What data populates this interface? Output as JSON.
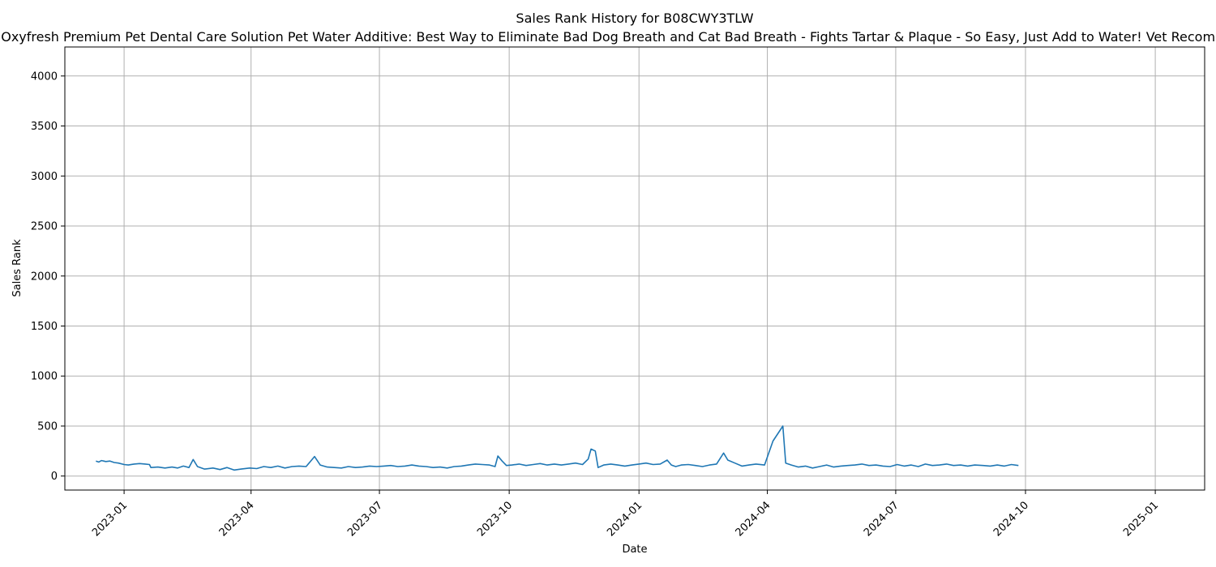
{
  "chart_data": {
    "type": "line",
    "title": "Sales Rank History for B08CWY3TLW",
    "subtitle": "Oxyfresh Premium Pet Dental Care Solution Pet Water Additive: Best Way to Eliminate Bad Dog Breath and Cat Bad Breath - Fights Tartar & Plaque - So Easy, Just Add to Water! Vet Recommended",
    "xlabel": "Date",
    "ylabel": "Sales Rank",
    "x_ticks": [
      "2023-01",
      "2023-04",
      "2023-07",
      "2023-10",
      "2024-01",
      "2024-04",
      "2024-07",
      "2024-10",
      "2025-01"
    ],
    "y_ticks": [
      0,
      500,
      1000,
      1500,
      2000,
      2500,
      3000,
      3500,
      4000
    ],
    "xlim": [
      "2022-11-20",
      "2025-02-05"
    ],
    "ylim": [
      -140,
      4290
    ],
    "grid": true,
    "line_color": "#1f77b4",
    "series": [
      {
        "points": [
          [
            "2022-12-12",
            150
          ],
          [
            "2022-12-14",
            140
          ],
          [
            "2022-12-16",
            155
          ],
          [
            "2022-12-19",
            145
          ],
          [
            "2022-12-22",
            150
          ],
          [
            "2022-12-25",
            135
          ],
          [
            "2022-12-28",
            130
          ],
          [
            "2023-01-01",
            115
          ],
          [
            "2023-01-04",
            110
          ],
          [
            "2023-01-08",
            120
          ],
          [
            "2023-01-12",
            125
          ],
          [
            "2023-01-16",
            120
          ],
          [
            "2023-01-19",
            115
          ],
          [
            "2023-01-20",
            85
          ],
          [
            "2023-01-25",
            90
          ],
          [
            "2023-01-30",
            80
          ],
          [
            "2023-02-04",
            90
          ],
          [
            "2023-02-08",
            80
          ],
          [
            "2023-02-12",
            100
          ],
          [
            "2023-02-16",
            85
          ],
          [
            "2023-02-19",
            165
          ],
          [
            "2023-02-22",
            95
          ],
          [
            "2023-02-27",
            70
          ],
          [
            "2023-03-05",
            80
          ],
          [
            "2023-03-10",
            65
          ],
          [
            "2023-03-15",
            85
          ],
          [
            "2023-03-20",
            60
          ],
          [
            "2023-03-25",
            70
          ],
          [
            "2023-03-31",
            80
          ],
          [
            "2023-04-05",
            75
          ],
          [
            "2023-04-10",
            95
          ],
          [
            "2023-04-15",
            85
          ],
          [
            "2023-04-20",
            100
          ],
          [
            "2023-04-25",
            80
          ],
          [
            "2023-04-30",
            95
          ],
          [
            "2023-05-05",
            100
          ],
          [
            "2023-05-10",
            95
          ],
          [
            "2023-05-16",
            195
          ],
          [
            "2023-05-20",
            110
          ],
          [
            "2023-05-25",
            90
          ],
          [
            "2023-05-30",
            85
          ],
          [
            "2023-06-04",
            80
          ],
          [
            "2023-06-09",
            95
          ],
          [
            "2023-06-14",
            85
          ],
          [
            "2023-06-19",
            90
          ],
          [
            "2023-06-24",
            100
          ],
          [
            "2023-06-29",
            95
          ],
          [
            "2023-07-04",
            100
          ],
          [
            "2023-07-09",
            105
          ],
          [
            "2023-07-14",
            95
          ],
          [
            "2023-07-19",
            100
          ],
          [
            "2023-07-24",
            110
          ],
          [
            "2023-07-29",
            100
          ],
          [
            "2023-08-03",
            95
          ],
          [
            "2023-08-08",
            85
          ],
          [
            "2023-08-13",
            90
          ],
          [
            "2023-08-18",
            80
          ],
          [
            "2023-08-23",
            95
          ],
          [
            "2023-08-28",
            100
          ],
          [
            "2023-09-02",
            110
          ],
          [
            "2023-09-07",
            120
          ],
          [
            "2023-09-12",
            115
          ],
          [
            "2023-09-17",
            110
          ],
          [
            "2023-09-21",
            95
          ],
          [
            "2023-09-23",
            200
          ],
          [
            "2023-09-26",
            150
          ],
          [
            "2023-09-29",
            105
          ],
          [
            "2023-10-03",
            110
          ],
          [
            "2023-10-08",
            120
          ],
          [
            "2023-10-13",
            105
          ],
          [
            "2023-10-18",
            115
          ],
          [
            "2023-10-23",
            125
          ],
          [
            "2023-10-28",
            110
          ],
          [
            "2023-11-02",
            120
          ],
          [
            "2023-11-07",
            110
          ],
          [
            "2023-11-12",
            120
          ],
          [
            "2023-11-17",
            130
          ],
          [
            "2023-11-22",
            115
          ],
          [
            "2023-11-26",
            170
          ],
          [
            "2023-11-28",
            270
          ],
          [
            "2023-12-01",
            250
          ],
          [
            "2023-12-03",
            85
          ],
          [
            "2023-12-07",
            110
          ],
          [
            "2023-12-12",
            120
          ],
          [
            "2023-12-17",
            110
          ],
          [
            "2023-12-22",
            100
          ],
          [
            "2023-12-27",
            110
          ],
          [
            "2024-01-01",
            120
          ],
          [
            "2024-01-06",
            130
          ],
          [
            "2024-01-11",
            115
          ],
          [
            "2024-01-16",
            120
          ],
          [
            "2024-01-21",
            160
          ],
          [
            "2024-01-24",
            110
          ],
          [
            "2024-01-27",
            95
          ],
          [
            "2024-01-31",
            110
          ],
          [
            "2024-02-05",
            115
          ],
          [
            "2024-02-10",
            105
          ],
          [
            "2024-02-15",
            95
          ],
          [
            "2024-02-20",
            110
          ],
          [
            "2024-02-25",
            120
          ],
          [
            "2024-03-01",
            230
          ],
          [
            "2024-03-04",
            160
          ],
          [
            "2024-03-09",
            130
          ],
          [
            "2024-03-14",
            100
          ],
          [
            "2024-03-19",
            110
          ],
          [
            "2024-03-24",
            120
          ],
          [
            "2024-03-30",
            110
          ],
          [
            "2024-04-05",
            350
          ],
          [
            "2024-04-12",
            500
          ],
          [
            "2024-04-14",
            130
          ],
          [
            "2024-04-18",
            110
          ],
          [
            "2024-04-23",
            90
          ],
          [
            "2024-04-28",
            100
          ],
          [
            "2024-05-03",
            80
          ],
          [
            "2024-05-08",
            95
          ],
          [
            "2024-05-13",
            110
          ],
          [
            "2024-05-18",
            90
          ],
          [
            "2024-05-23",
            100
          ],
          [
            "2024-05-28",
            105
          ],
          [
            "2024-06-02",
            110
          ],
          [
            "2024-06-07",
            120
          ],
          [
            "2024-06-12",
            105
          ],
          [
            "2024-06-17",
            110
          ],
          [
            "2024-06-22",
            100
          ],
          [
            "2024-06-27",
            95
          ],
          [
            "2024-07-02",
            115
          ],
          [
            "2024-07-07",
            100
          ],
          [
            "2024-07-12",
            110
          ],
          [
            "2024-07-17",
            95
          ],
          [
            "2024-07-22",
            120
          ],
          [
            "2024-07-27",
            105
          ],
          [
            "2024-08-01",
            110
          ],
          [
            "2024-08-06",
            120
          ],
          [
            "2024-08-11",
            105
          ],
          [
            "2024-08-16",
            110
          ],
          [
            "2024-08-21",
            100
          ],
          [
            "2024-08-26",
            110
          ],
          [
            "2024-09-01",
            105
          ],
          [
            "2024-09-06",
            100
          ],
          [
            "2024-09-11",
            110
          ],
          [
            "2024-09-16",
            100
          ],
          [
            "2024-09-21",
            115
          ],
          [
            "2024-09-26",
            105
          ]
        ]
      }
    ]
  }
}
